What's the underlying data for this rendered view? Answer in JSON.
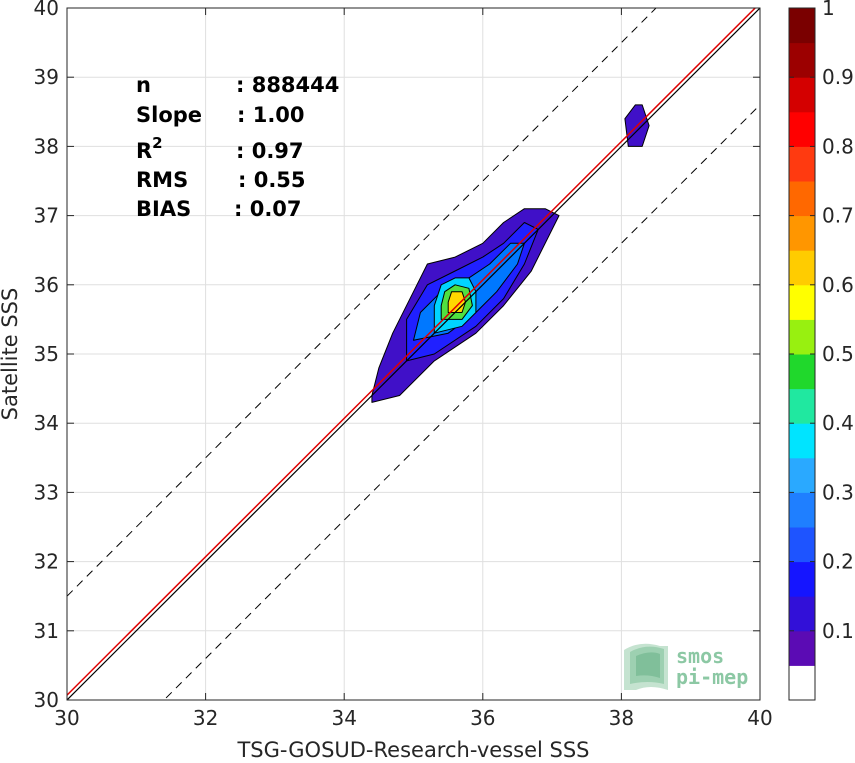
{
  "chart_data": {
    "type": "scatter",
    "xlabel": "TSG-GOSUD-Research-vessel SSS",
    "ylabel": "Satellite SSS",
    "xlim": [
      30,
      40
    ],
    "ylim": [
      30,
      40
    ],
    "xticks": [
      "30",
      "32",
      "34",
      "36",
      "38",
      "40"
    ],
    "yticks": [
      "30",
      "31",
      "32",
      "33",
      "34",
      "35",
      "36",
      "37",
      "38",
      "39",
      "40"
    ],
    "grid": true,
    "reference_lines": {
      "identity": {
        "slope": 1,
        "intercept": 0,
        "color": "#000000"
      },
      "fit": {
        "slope": 1.0,
        "intercept": 0.07,
        "color": "#e00000"
      },
      "upper_dashed": {
        "slope": 1,
        "intercept": 1.5
      },
      "lower_dashed": {
        "slope": 1,
        "intercept": -1.4
      }
    },
    "stats": [
      {
        "label": "n",
        "value": ": 888444"
      },
      {
        "label": "Slope",
        "value": ": 1.00"
      },
      {
        "label": "R",
        "sup": "2",
        "value": ": 0.97"
      },
      {
        "label": "RMS",
        "value": ": 0.55"
      },
      {
        "label": "BIAS",
        "value": ": 0.07"
      }
    ],
    "density_contours": [
      {
        "level": 0.05,
        "color": "#4010c8",
        "points": [
          [
            34.4,
            34.3
          ],
          [
            34.8,
            34.4
          ],
          [
            35.3,
            34.9
          ],
          [
            35.9,
            35.3
          ],
          [
            36.3,
            35.7
          ],
          [
            36.7,
            36.2
          ],
          [
            37.1,
            37.0
          ],
          [
            36.9,
            37.1
          ],
          [
            36.6,
            37.1
          ],
          [
            36.3,
            36.9
          ],
          [
            36.0,
            36.6
          ],
          [
            35.6,
            36.4
          ],
          [
            35.2,
            36.3
          ],
          [
            35.0,
            35.9
          ],
          [
            34.7,
            35.3
          ],
          [
            34.5,
            34.8
          ],
          [
            34.4,
            34.4
          ]
        ]
      },
      {
        "level": 0.1,
        "color": "#2020ff",
        "points": [
          [
            34.9,
            34.9
          ],
          [
            35.3,
            35.0
          ],
          [
            35.9,
            35.4
          ],
          [
            36.3,
            35.8
          ],
          [
            36.6,
            36.3
          ],
          [
            36.8,
            36.8
          ],
          [
            36.6,
            36.9
          ],
          [
            36.3,
            36.6
          ],
          [
            36.0,
            36.4
          ],
          [
            35.6,
            36.2
          ],
          [
            35.2,
            36.0
          ],
          [
            34.9,
            35.5
          ],
          [
            34.9,
            35.1
          ]
        ]
      },
      {
        "level": 0.2,
        "color": "#0078ff",
        "points": [
          [
            35.0,
            35.2
          ],
          [
            35.5,
            35.3
          ],
          [
            35.9,
            35.6
          ],
          [
            36.2,
            35.9
          ],
          [
            36.5,
            36.3
          ],
          [
            36.6,
            36.6
          ],
          [
            36.4,
            36.6
          ],
          [
            36.1,
            36.3
          ],
          [
            35.8,
            36.1
          ],
          [
            35.4,
            35.9
          ],
          [
            35.1,
            35.6
          ]
        ]
      },
      {
        "level": 0.35,
        "color": "#00d4ff",
        "points": [
          [
            35.3,
            35.3
          ],
          [
            35.7,
            35.4
          ],
          [
            35.9,
            35.6
          ],
          [
            35.9,
            35.9
          ],
          [
            35.8,
            36.1
          ],
          [
            35.6,
            36.1
          ],
          [
            35.4,
            36.0
          ],
          [
            35.3,
            35.7
          ]
        ]
      },
      {
        "level": 0.55,
        "color": "#50e040",
        "points": [
          [
            35.4,
            35.5
          ],
          [
            35.7,
            35.5
          ],
          [
            35.85,
            35.7
          ],
          [
            35.8,
            35.95
          ],
          [
            35.6,
            36.0
          ],
          [
            35.45,
            35.9
          ],
          [
            35.4,
            35.7
          ]
        ]
      },
      {
        "level": 0.65,
        "color": "#ffd700",
        "points": [
          [
            35.5,
            35.6
          ],
          [
            35.7,
            35.6
          ],
          [
            35.75,
            35.75
          ],
          [
            35.7,
            35.9
          ],
          [
            35.55,
            35.9
          ],
          [
            35.5,
            35.75
          ]
        ]
      },
      {
        "level": 0.05,
        "color": "#4010c8",
        "points": [
          [
            38.1,
            38.0
          ],
          [
            38.3,
            38.0
          ],
          [
            38.4,
            38.3
          ],
          [
            38.3,
            38.6
          ],
          [
            38.2,
            38.6
          ],
          [
            38.05,
            38.4
          ]
        ]
      }
    ],
    "colorbar": {
      "ticks": [
        "0.1",
        "0.2",
        "0.3",
        "0.4",
        "0.5",
        "0.6",
        "0.7",
        "0.8",
        "0.9",
        "1"
      ],
      "colors": [
        "#ffffff",
        "#5b0bb4",
        "#3210d8",
        "#1515ff",
        "#1e54ff",
        "#1f7fff",
        "#2aa9ff",
        "#00e4ff",
        "#20e8a0",
        "#20d82c",
        "#98f010",
        "#ffff00",
        "#ffcc00",
        "#ff9600",
        "#ff6800",
        "#ff3a10",
        "#ff0000",
        "#d40000",
        "#9c0000",
        "#7a0000"
      ]
    }
  },
  "logo": {
    "line1": "smos",
    "line2": "pi-mep"
  }
}
